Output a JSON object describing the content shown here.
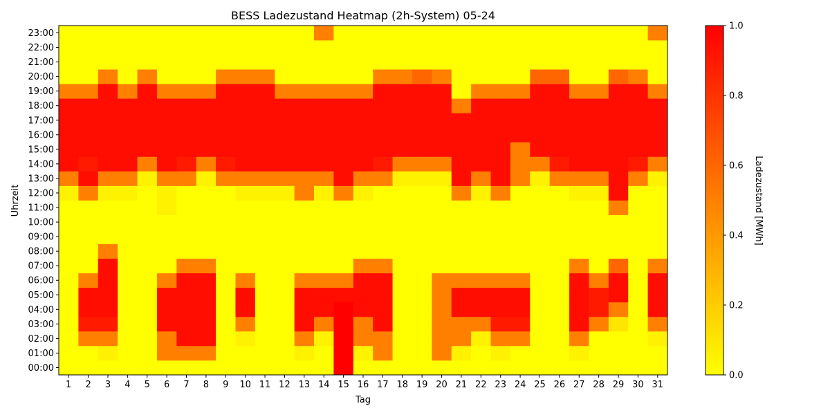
{
  "chart_data": {
    "type": "heatmap",
    "title": "BESS Ladezustand Heatmap (2h-System) 05-24",
    "xlabel": "Tag",
    "ylabel": "Uhrzeit",
    "x_categories": [
      "1",
      "2",
      "3",
      "4",
      "5",
      "6",
      "7",
      "8",
      "9",
      "10",
      "11",
      "12",
      "13",
      "14",
      "15",
      "16",
      "17",
      "18",
      "19",
      "20",
      "21",
      "22",
      "23",
      "24",
      "25",
      "26",
      "27",
      "28",
      "29",
      "30",
      "31"
    ],
    "y_categories": [
      "00:00",
      "01:00",
      "02:00",
      "03:00",
      "04:00",
      "05:00",
      "06:00",
      "07:00",
      "08:00",
      "09:00",
      "10:00",
      "11:00",
      "12:00",
      "13:00",
      "14:00",
      "15:00",
      "16:00",
      "17:00",
      "18:00",
      "19:00",
      "20:00",
      "21:00",
      "22:00",
      "23:00"
    ],
    "colorbar": {
      "label": "Ladezustand [MWh]",
      "range": [
        0,
        1
      ],
      "ticks": [
        "0.0",
        "0.2",
        "0.4",
        "0.6",
        "0.8",
        "1.0"
      ],
      "colors": [
        "#ffff00",
        "#ff8000",
        "#ff0000"
      ]
    },
    "values": [
      [
        0,
        0,
        0,
        0,
        0,
        0,
        0,
        0,
        0,
        0,
        0,
        0,
        0,
        0,
        1,
        0,
        0,
        0,
        0,
        0,
        0,
        0,
        0,
        0,
        0,
        0,
        0,
        0,
        0,
        0,
        0
      ],
      [
        0,
        0,
        0.05,
        0,
        0,
        0.5,
        0.5,
        0.5,
        0,
        0,
        0,
        0,
        0.05,
        0,
        1,
        0.05,
        0.5,
        0,
        0,
        0.5,
        0.05,
        0,
        0.05,
        0,
        0,
        0,
        0.05,
        0,
        0,
        0,
        0
      ],
      [
        0,
        0.5,
        0.5,
        0,
        0,
        0.5,
        0.95,
        0.95,
        0,
        0.05,
        0,
        0,
        0.5,
        0.05,
        1,
        0.5,
        0.5,
        0,
        0,
        0.5,
        0.5,
        0.05,
        0.5,
        0.5,
        0,
        0,
        0.5,
        0,
        0,
        0,
        0.05
      ],
      [
        0,
        0.9,
        0.9,
        0,
        0,
        0.95,
        0.95,
        0.95,
        0,
        0.5,
        0,
        0,
        0.95,
        0.5,
        1,
        0.5,
        0.95,
        0,
        0,
        0.5,
        0.5,
        0.5,
        0.9,
        0.9,
        0,
        0,
        0.95,
        0.5,
        0.1,
        0,
        0.5
      ],
      [
        0,
        0.95,
        0.95,
        0,
        0,
        0.95,
        0.95,
        0.95,
        0,
        0.95,
        0,
        0,
        0.95,
        0.95,
        1,
        0.95,
        0.95,
        0,
        0,
        0.5,
        0.95,
        0.95,
        0.95,
        0.95,
        0,
        0,
        0.95,
        0.9,
        0.5,
        0,
        0.95
      ],
      [
        0,
        0.95,
        0.95,
        0,
        0,
        0.95,
        0.95,
        0.95,
        0,
        0.95,
        0,
        0,
        0.95,
        0.95,
        0.95,
        0.95,
        0.95,
        0,
        0,
        0.5,
        0.95,
        0.95,
        0.95,
        0.95,
        0,
        0,
        0.95,
        0.9,
        0.95,
        0,
        0.95
      ],
      [
        0,
        0.5,
        0.95,
        0,
        0,
        0.5,
        0.95,
        0.95,
        0,
        0.5,
        0,
        0,
        0.5,
        0.5,
        0.5,
        0.95,
        0.95,
        0,
        0,
        0.5,
        0.5,
        0.5,
        0.5,
        0.5,
        0,
        0,
        0.95,
        0.5,
        0.95,
        0,
        0.95
      ],
      [
        0,
        0,
        0.95,
        0,
        0,
        0,
        0.5,
        0.5,
        0,
        0,
        0,
        0,
        0,
        0,
        0,
        0.5,
        0.5,
        0,
        0,
        0,
        0,
        0,
        0,
        0,
        0,
        0,
        0.5,
        0,
        0.6,
        0,
        0.5
      ],
      [
        0,
        0,
        0.5,
        0,
        0,
        0,
        0,
        0,
        0,
        0,
        0,
        0,
        0,
        0,
        0,
        0,
        0,
        0,
        0,
        0,
        0,
        0,
        0,
        0,
        0,
        0,
        0,
        0,
        0,
        0,
        0
      ],
      [
        0,
        0,
        0,
        0,
        0,
        0,
        0,
        0,
        0,
        0,
        0,
        0,
        0,
        0,
        0,
        0,
        0,
        0,
        0,
        0,
        0,
        0,
        0,
        0,
        0,
        0,
        0,
        0,
        0,
        0,
        0
      ],
      [
        0,
        0,
        0,
        0,
        0,
        0,
        0,
        0,
        0,
        0,
        0,
        0,
        0,
        0,
        0,
        0,
        0,
        0,
        0,
        0,
        0,
        0,
        0,
        0,
        0,
        0,
        0,
        0,
        0,
        0,
        0
      ],
      [
        0,
        0,
        0,
        0,
        0,
        0.05,
        0,
        0,
        0,
        0,
        0,
        0,
        0,
        0,
        0,
        0,
        0,
        0,
        0,
        0,
        0,
        0,
        0,
        0,
        0,
        0,
        0,
        0,
        0.5,
        0,
        0
      ],
      [
        0.05,
        0.5,
        0.05,
        0.05,
        0,
        0.05,
        0,
        0,
        0,
        0.05,
        0.05,
        0.05,
        0.5,
        0.05,
        0.5,
        0.05,
        0,
        0,
        0,
        0,
        0.5,
        0.05,
        0.5,
        0,
        0,
        0,
        0.05,
        0.05,
        0.95,
        0,
        0
      ],
      [
        0.5,
        0.95,
        0.5,
        0.5,
        0.05,
        0.5,
        0.5,
        0.05,
        0.5,
        0.5,
        0.5,
        0.5,
        0.5,
        0.5,
        0.95,
        0.5,
        0.5,
        0.05,
        0.05,
        0.05,
        0.95,
        0.5,
        0.95,
        0.5,
        0.05,
        0.5,
        0.5,
        0.5,
        0.95,
        0.5,
        0.05
      ],
      [
        0.95,
        0.9,
        0.95,
        0.95,
        0.5,
        0.95,
        0.9,
        0.5,
        0.9,
        0.95,
        0.95,
        0.95,
        0.95,
        0.95,
        0.95,
        0.95,
        0.9,
        0.5,
        0.5,
        0.5,
        0.95,
        0.95,
        0.95,
        0.5,
        0.5,
        0.9,
        0.95,
        0.95,
        0.95,
        0.9,
        0.5
      ],
      [
        0.95,
        0.95,
        0.95,
        0.95,
        0.95,
        0.95,
        0.95,
        0.95,
        0.95,
        0.95,
        0.95,
        0.95,
        0.95,
        0.95,
        0.95,
        0.95,
        0.95,
        0.95,
        0.95,
        0.95,
        0.95,
        0.95,
        0.95,
        0.5,
        0.95,
        0.95,
        0.95,
        0.95,
        0.95,
        0.95,
        0.95
      ],
      [
        0.95,
        0.95,
        0.95,
        0.95,
        0.95,
        0.95,
        0.95,
        0.95,
        0.95,
        0.95,
        0.95,
        0.95,
        0.95,
        0.95,
        0.95,
        0.95,
        0.95,
        0.95,
        0.95,
        0.95,
        0.95,
        0.95,
        0.95,
        0.95,
        0.95,
        0.95,
        0.95,
        0.95,
        0.95,
        0.95,
        0.95
      ],
      [
        0.95,
        0.95,
        0.95,
        0.95,
        0.95,
        0.95,
        0.95,
        0.95,
        0.95,
        0.95,
        0.95,
        0.95,
        0.95,
        0.95,
        0.95,
        0.95,
        0.95,
        0.95,
        0.95,
        0.95,
        0.95,
        0.95,
        0.95,
        0.95,
        0.95,
        0.95,
        0.95,
        0.95,
        0.95,
        0.95,
        0.95
      ],
      [
        0.95,
        0.95,
        0.95,
        0.95,
        0.95,
        0.95,
        0.95,
        0.95,
        0.95,
        0.95,
        0.95,
        0.95,
        0.95,
        0.95,
        0.95,
        0.95,
        0.95,
        0.95,
        0.95,
        0.95,
        0.5,
        0.95,
        0.95,
        0.95,
        0.95,
        0.95,
        0.95,
        0.95,
        0.95,
        0.95,
        0.95
      ],
      [
        0.5,
        0.5,
        0.95,
        0.5,
        0.95,
        0.5,
        0.5,
        0.5,
        0.95,
        0.95,
        0.95,
        0.5,
        0.5,
        0.5,
        0.5,
        0.5,
        0.95,
        0.95,
        0.95,
        0.95,
        0,
        0.5,
        0.5,
        0.5,
        0.95,
        0.95,
        0.5,
        0.5,
        0.95,
        0.95,
        0.5
      ],
      [
        0,
        0,
        0.5,
        0,
        0.5,
        0,
        0,
        0,
        0.5,
        0.5,
        0.5,
        0,
        0,
        0,
        0,
        0,
        0.5,
        0.5,
        0.6,
        0.5,
        0,
        0,
        0,
        0,
        0.6,
        0.6,
        0,
        0,
        0.6,
        0.5,
        0
      ],
      [
        0,
        0,
        0,
        0,
        0,
        0,
        0,
        0,
        0,
        0,
        0,
        0,
        0,
        0,
        0,
        0,
        0,
        0,
        0,
        0,
        0,
        0,
        0,
        0,
        0,
        0,
        0,
        0,
        0,
        0,
        0
      ],
      [
        0,
        0,
        0,
        0,
        0,
        0,
        0,
        0,
        0,
        0,
        0,
        0,
        0,
        0,
        0,
        0,
        0,
        0,
        0,
        0,
        0,
        0,
        0,
        0,
        0,
        0,
        0,
        0,
        0,
        0,
        0
      ],
      [
        0,
        0,
        0,
        0,
        0,
        0,
        0,
        0,
        0,
        0,
        0,
        0,
        0,
        0.5,
        0,
        0,
        0,
        0,
        0,
        0,
        0,
        0,
        0,
        0,
        0,
        0,
        0,
        0,
        0,
        0,
        0.5
      ]
    ]
  }
}
